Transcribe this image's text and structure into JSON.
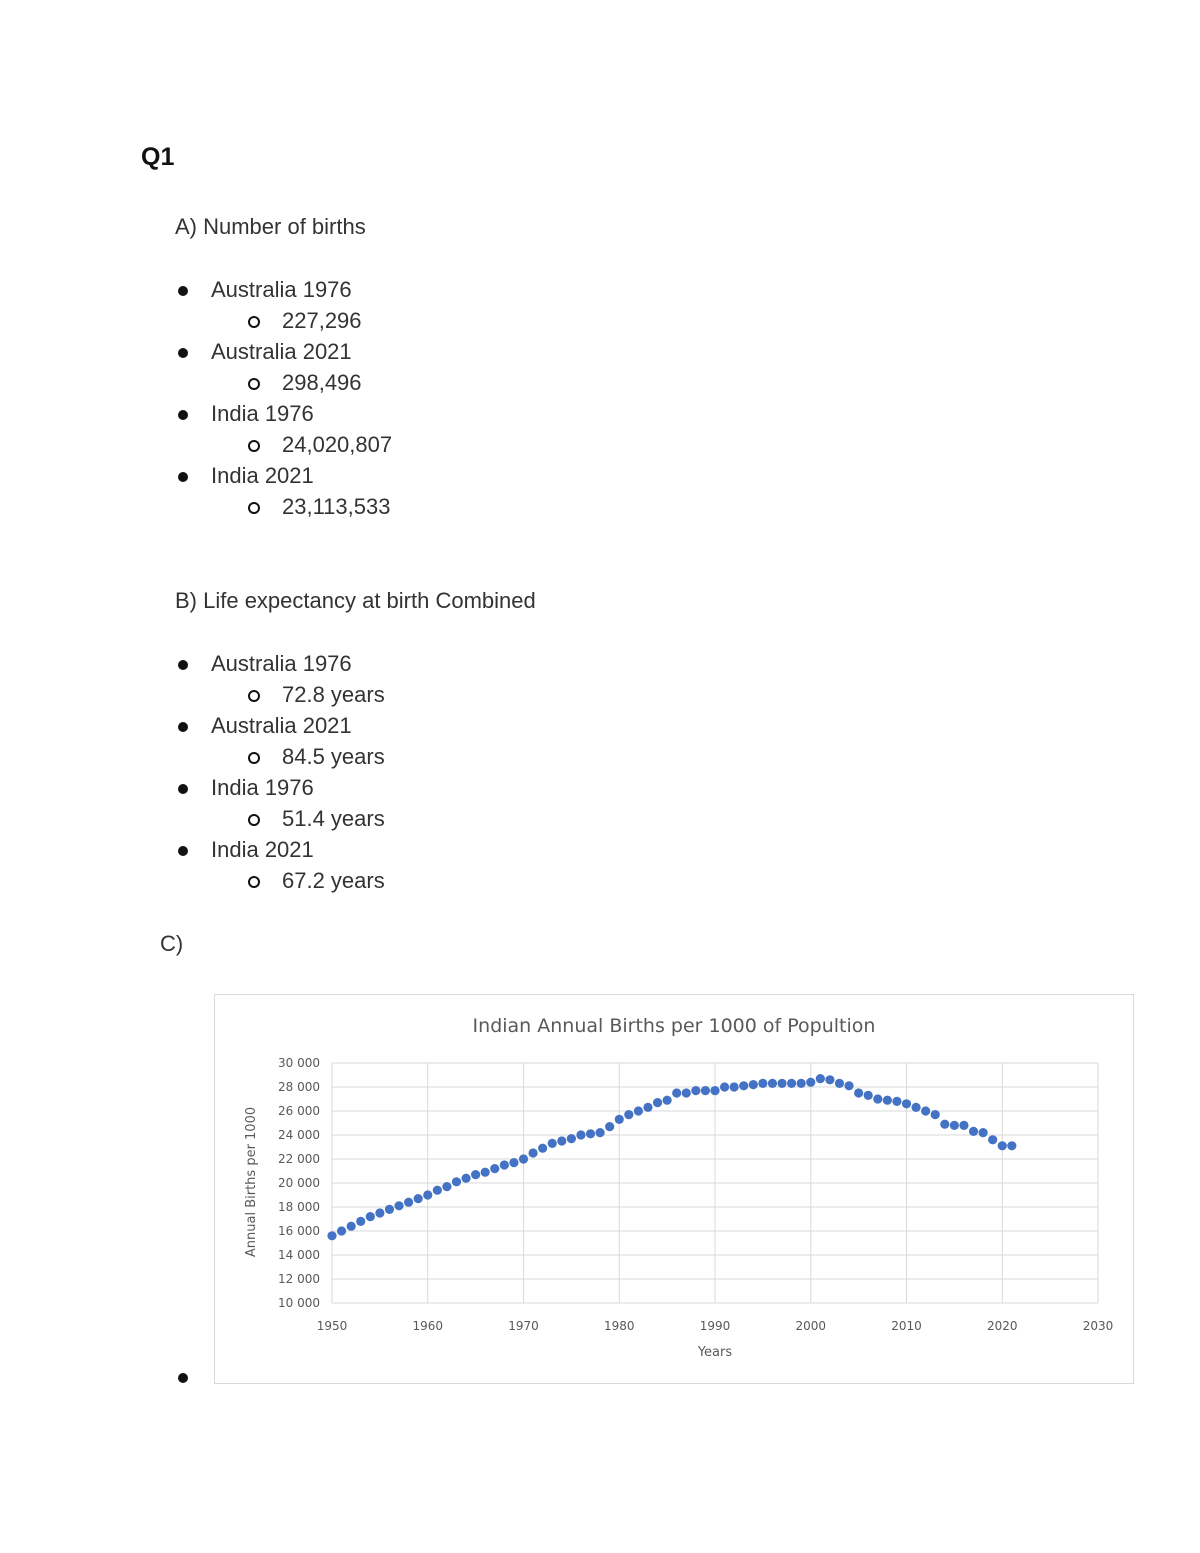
{
  "question": "Q1",
  "section_a": {
    "label": "A)  Number of births",
    "items": [
      {
        "country_year": "Australia 1976",
        "value": "227,296"
      },
      {
        "country_year": "Australia 2021",
        "value": "298,496"
      },
      {
        "country_year": "India 1976",
        "value": "24,020,807"
      },
      {
        "country_year": "India 2021",
        "value": "23,113,533"
      }
    ]
  },
  "section_b": {
    "label": "B)  Life expectancy at birth Combined",
    "items": [
      {
        "country_year": "Australia 1976",
        "value": "72.8 years"
      },
      {
        "country_year": "Australia 2021",
        "value": "84.5 years"
      },
      {
        "country_year": "India 1976",
        "value": "51.4 years"
      },
      {
        "country_year": "India 2021",
        "value": "67.2 years"
      }
    ]
  },
  "section_c": {
    "label": "C)"
  },
  "chart_data": {
    "type": "scatter",
    "title": "Indian Annual Births per 1000 of Popultion",
    "xlabel": "Years",
    "ylabel": "Annual Births per 1000",
    "xlim": [
      1950,
      2030
    ],
    "ylim": [
      10000,
      30000
    ],
    "x_ticks": [
      "1950",
      "1960",
      "1970",
      "1980",
      "1990",
      "2000",
      "2010",
      "2020",
      "2030"
    ],
    "y_ticks": [
      "30 000",
      "28 000",
      "26 000",
      "24 000",
      "22 000",
      "20 000",
      "18 000",
      "16 000",
      "14 000",
      "12 000",
      "10 000"
    ],
    "grid": true,
    "marker_color": "#4472c4",
    "x": [
      1950,
      1951,
      1952,
      1953,
      1954,
      1955,
      1956,
      1957,
      1958,
      1959,
      1960,
      1961,
      1962,
      1963,
      1964,
      1965,
      1966,
      1967,
      1968,
      1969,
      1970,
      1971,
      1972,
      1973,
      1974,
      1975,
      1976,
      1977,
      1978,
      1979,
      1980,
      1981,
      1982,
      1983,
      1984,
      1985,
      1986,
      1987,
      1988,
      1989,
      1990,
      1991,
      1992,
      1993,
      1994,
      1995,
      1996,
      1997,
      1998,
      1999,
      2000,
      2001,
      2002,
      2003,
      2004,
      2005,
      2006,
      2007,
      2008,
      2009,
      2010,
      2011,
      2012,
      2013,
      2014,
      2015,
      2016,
      2017,
      2018,
      2019,
      2020,
      2021
    ],
    "y": [
      15600,
      16000,
      16400,
      16800,
      17200,
      17500,
      17800,
      18100,
      18400,
      18700,
      19000,
      19400,
      19700,
      20100,
      20400,
      20700,
      20900,
      21200,
      21500,
      21700,
      22000,
      22500,
      22900,
      23300,
      23500,
      23700,
      24000,
      24100,
      24200,
      24700,
      25300,
      25700,
      26000,
      26300,
      26700,
      26900,
      27500,
      27500,
      27700,
      27700,
      27700,
      28000,
      28000,
      28100,
      28200,
      28300,
      28300,
      28300,
      28300,
      28300,
      28400,
      28700,
      28600,
      28300,
      28100,
      27500,
      27300,
      27000,
      26900,
      26800,
      26600,
      26300,
      26000,
      25700,
      24900,
      24800,
      24800,
      24300,
      24200,
      23600,
      23100,
      23100
    ]
  },
  "trailing_bullet": ""
}
